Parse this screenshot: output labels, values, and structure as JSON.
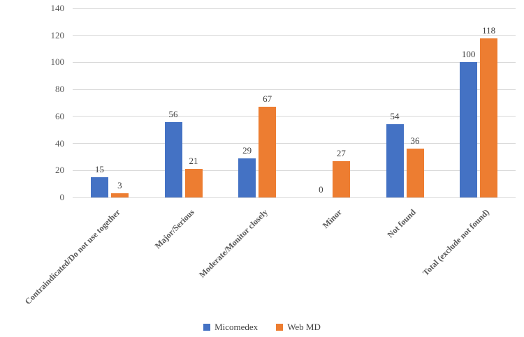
{
  "chart_data": {
    "type": "bar",
    "title": "",
    "xlabel": "",
    "ylabel": "",
    "categories": [
      "Contraindicated/Do not use together",
      "Major/Serious",
      "Moderate/Monitor closely",
      "Minor",
      "Not found",
      "Total (exclude not found)"
    ],
    "series": [
      {
        "name": "Micomedex",
        "color": "#4472C4",
        "values": [
          15,
          56,
          29,
          0,
          54,
          100
        ]
      },
      {
        "name": "Web MD",
        "color": "#ED7D31",
        "values": [
          3,
          21,
          67,
          27,
          36,
          118
        ]
      }
    ],
    "ylim": [
      0,
      140
    ],
    "yticks": [
      0,
      20,
      40,
      60,
      80,
      100,
      120,
      140
    ],
    "grid": true,
    "legend_position": "bottom",
    "colors": {
      "gridline": "#d9d9d9",
      "axis_line": "#d9d9d9",
      "tick_text": "#595959",
      "category_text": "#595959",
      "value_text": "#404040",
      "legend_text": "#404040",
      "background": "#ffffff"
    }
  }
}
